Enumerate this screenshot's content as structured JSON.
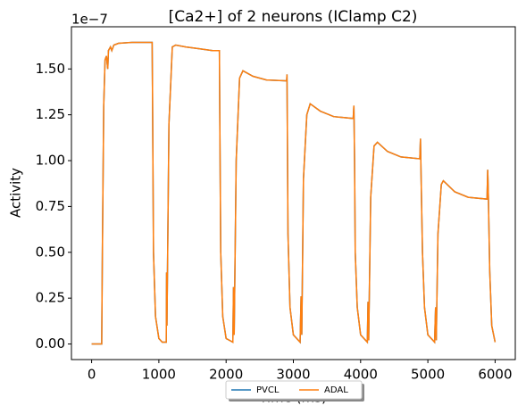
{
  "chart_data": {
    "type": "line",
    "title": "[Ca2+] of 2 neurons (IClamp C2)",
    "x_label": "Time (ms)",
    "y_label": "Activity",
    "y_offset_label": "1e−7",
    "x": [
      0,
      150,
      160,
      180,
      200,
      220,
      240,
      250,
      280,
      300,
      330,
      400,
      600,
      900,
      905,
      920,
      950,
      1000,
      1050,
      1110,
      1115,
      1120,
      1150,
      1200,
      1250,
      1400,
      1600,
      1800,
      1900,
      1905,
      1920,
      1950,
      2000,
      2100,
      2110,
      2120,
      2150,
      2200,
      2250,
      2400,
      2600,
      2900,
      2905,
      2910,
      2920,
      2950,
      3000,
      3100,
      3115,
      3125,
      3150,
      3200,
      3250,
      3400,
      3600,
      3890,
      3900,
      3910,
      3920,
      3950,
      4000,
      4100,
      4110,
      4120,
      4150,
      4200,
      4250,
      4400,
      4600,
      4880,
      4890,
      4900,
      4920,
      4950,
      5000,
      5100,
      5115,
      5125,
      5150,
      5200,
      5230,
      5400,
      5600,
      5880,
      5890,
      5900,
      5920,
      5950,
      6000
    ],
    "series": [
      {
        "name": "PVCL",
        "color": "#1f77b4",
        "values": [
          0,
          0,
          0.5,
          1.3,
          1.55,
          1.57,
          1.5,
          1.6,
          1.62,
          1.6,
          1.63,
          1.64,
          1.645,
          1.645,
          1.4,
          0.5,
          0.15,
          0.03,
          0.01,
          0.01,
          0.39,
          0.1,
          1.2,
          1.62,
          1.63,
          1.62,
          1.61,
          1.6,
          1.6,
          1.3,
          0.5,
          0.15,
          0.03,
          0.01,
          0.31,
          0.05,
          1.0,
          1.45,
          1.49,
          1.46,
          1.44,
          1.435,
          1.47,
          1.2,
          0.6,
          0.2,
          0.05,
          0.01,
          0.26,
          0.05,
          0.9,
          1.25,
          1.31,
          1.27,
          1.24,
          1.23,
          1.3,
          1.0,
          0.5,
          0.2,
          0.05,
          0.01,
          0.23,
          0.02,
          0.8,
          1.08,
          1.1,
          1.05,
          1.02,
          1.01,
          1.12,
          0.9,
          0.5,
          0.2,
          0.05,
          0.01,
          0.2,
          0.02,
          0.6,
          0.87,
          0.89,
          0.83,
          0.8,
          0.79,
          0.95,
          0.8,
          0.4,
          0.1,
          0.01
        ]
      },
      {
        "name": "ADAL",
        "color": "#ff7f0e",
        "values": [
          0,
          0,
          0.5,
          1.3,
          1.55,
          1.57,
          1.5,
          1.6,
          1.62,
          1.6,
          1.63,
          1.64,
          1.645,
          1.645,
          1.4,
          0.5,
          0.15,
          0.03,
          0.01,
          0.01,
          0.39,
          0.1,
          1.2,
          1.62,
          1.63,
          1.62,
          1.61,
          1.6,
          1.6,
          1.3,
          0.5,
          0.15,
          0.03,
          0.01,
          0.31,
          0.05,
          1.0,
          1.45,
          1.49,
          1.46,
          1.44,
          1.435,
          1.47,
          1.2,
          0.6,
          0.2,
          0.05,
          0.01,
          0.26,
          0.05,
          0.9,
          1.25,
          1.31,
          1.27,
          1.24,
          1.23,
          1.3,
          1.0,
          0.5,
          0.2,
          0.05,
          0.01,
          0.23,
          0.02,
          0.8,
          1.08,
          1.1,
          1.05,
          1.02,
          1.01,
          1.12,
          0.9,
          0.5,
          0.2,
          0.05,
          0.01,
          0.2,
          0.02,
          0.6,
          0.87,
          0.89,
          0.83,
          0.8,
          0.79,
          0.95,
          0.8,
          0.4,
          0.1,
          0.01
        ]
      }
    ],
    "xlim": [
      -300,
      6300
    ],
    "ylim": [
      -0.085,
      1.73
    ],
    "xticks": [
      0,
      1000,
      2000,
      3000,
      4000,
      5000,
      6000
    ],
    "yticks": [
      {
        "value": 0,
        "label": "0.00"
      },
      0.25,
      {
        "value": 0.5,
        "label": "0.50"
      },
      0.75,
      {
        "value": 1,
        "label": "1.00"
      },
      1.25,
      {
        "value": 1.5,
        "label": "1.50"
      }
    ],
    "legend": "lower center",
    "grid": false
  }
}
